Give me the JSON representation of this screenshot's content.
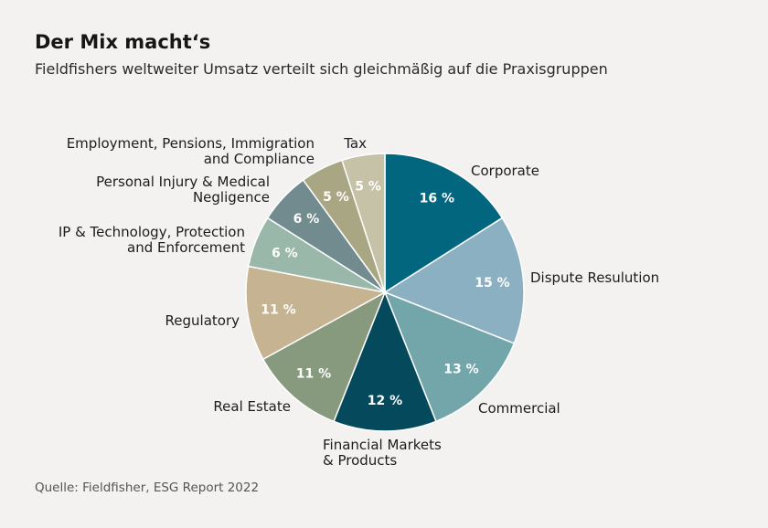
{
  "header": {
    "title": "Der Mix macht‘s",
    "subtitle": "Fieldfishers weltweiter Umsatz verteilt sich gleichmäßig auf die Praxisgruppen"
  },
  "footer": {
    "source": "Quelle: Fieldfisher, ESG Report 2022"
  },
  "chart_data": {
    "type": "pie",
    "title": "Der Mix macht‘s",
    "subtitle": "Fieldfishers weltweiter Umsatz verteilt sich gleichmäßig auf die Praxisgruppen",
    "unit": "%",
    "start_angle_deg": 0,
    "direction": "clockwise",
    "legend": "none",
    "slices": [
      {
        "label": "Corporate",
        "value": 16,
        "value_label": "16 %",
        "color": "#03667f"
      },
      {
        "label": "Dispute Resulution",
        "value": 15,
        "value_label": "15 %",
        "color": "#8bb0c1"
      },
      {
        "label": "Commercial",
        "value": 13,
        "value_label": "13 %",
        "color": "#72a6ab"
      },
      {
        "label": "Financial Markets\n& Products",
        "value": 12,
        "value_label": "12 %",
        "color": "#054a5c"
      },
      {
        "label": "Real Estate",
        "value": 11,
        "value_label": "11 %",
        "color": "#879a7d"
      },
      {
        "label": "Regulatory",
        "value": 11,
        "value_label": "11 %",
        "color": "#c5b391"
      },
      {
        "label": "IP & Technology, Protection\nand Enforcement",
        "value": 6,
        "value_label": "6 %",
        "color": "#99b8a9"
      },
      {
        "label": "Personal Injury & Medical\nNegligence",
        "value": 6,
        "value_label": "6 %",
        "color": "#718b8f"
      },
      {
        "label": "Employment, Pensions, Immigration\nand Compliance",
        "value": 5,
        "value_label": "5 %",
        "color": "#a9a783"
      },
      {
        "label": "Tax",
        "value": 5,
        "value_label": "5 %",
        "color": "#c5c2a8"
      }
    ]
  }
}
